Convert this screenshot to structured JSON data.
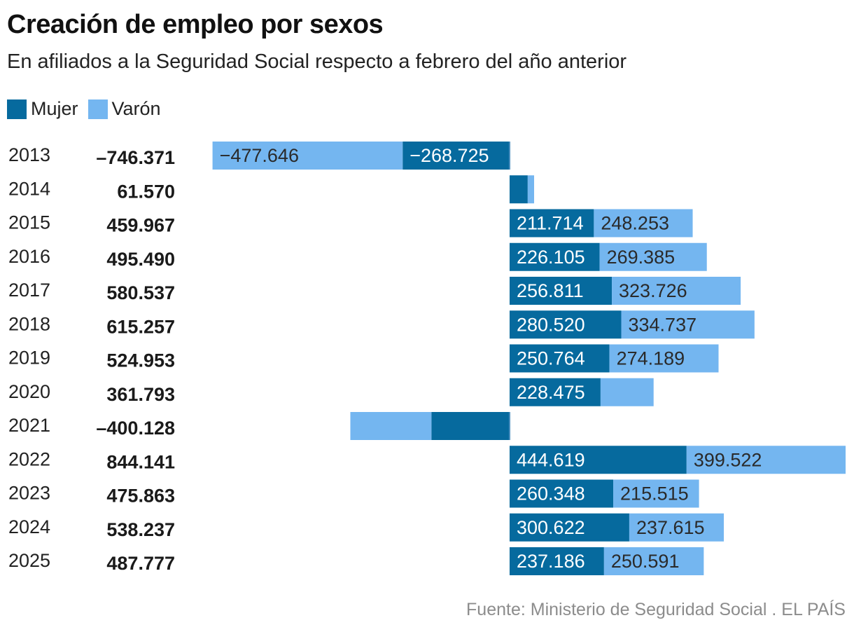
{
  "chart_data": {
    "type": "bar",
    "orientation": "horizontal",
    "stacked": true,
    "title": "Creación de empleo por sexos",
    "subtitle": "En afiliados a la Seguridad Social respecto a febrero del año anterior",
    "xlabel": "",
    "ylabel": "",
    "grid": false,
    "legend_position": "top-left",
    "categories": [
      "2013",
      "2014",
      "2015",
      "2016",
      "2017",
      "2018",
      "2019",
      "2020",
      "2021",
      "2022",
      "2023",
      "2024",
      "2025"
    ],
    "totals": [
      -746371,
      61570,
      459967,
      495490,
      580537,
      615257,
      524953,
      361793,
      -400128,
      844141,
      475863,
      538237,
      487777
    ],
    "total_labels": [
      "–746.371",
      "61.570",
      "459.967",
      "495.490",
      "580.537",
      "615.257",
      "524.953",
      "361.793",
      "–400.128",
      "844.141",
      "475.863",
      "538.237",
      "487.777"
    ],
    "series": [
      {
        "name": "Mujer",
        "color": "#066a9e",
        "values": [
          -268725,
          45500,
          211714,
          226105,
          256811,
          280520,
          250764,
          228475,
          -196500,
          444619,
          260348,
          300622,
          237186
        ],
        "labels": [
          "−268.725",
          "",
          "211.714",
          "226.105",
          "256.811",
          "280.520",
          "250.764",
          "228.475",
          "",
          "444.619",
          "260.348",
          "300.622",
          "237.186"
        ],
        "estimated_indices": [
          1,
          8
        ]
      },
      {
        "name": "Varón",
        "color": "#74b6f0",
        "values": [
          -477646,
          16070,
          248253,
          269385,
          323726,
          334737,
          274189,
          133318,
          -203628,
          399522,
          215515,
          237615,
          250591
        ],
        "labels": [
          "−477.646",
          "",
          "248.253",
          "269.385",
          "323.726",
          "334.737",
          "274.189",
          "",
          "",
          "399.522",
          "215.515",
          "237.615",
          "250.591"
        ],
        "estimated_indices": [
          1,
          7,
          8
        ]
      }
    ],
    "xlim": [
      -746371,
      844141
    ]
  },
  "legend": [
    {
      "label": "Mujer",
      "color": "#066a9e"
    },
    {
      "label": "Varón",
      "color": "#74b6f0"
    }
  ],
  "source": "Fuente: Ministerio de Seguridad Social . EL PAÍS"
}
